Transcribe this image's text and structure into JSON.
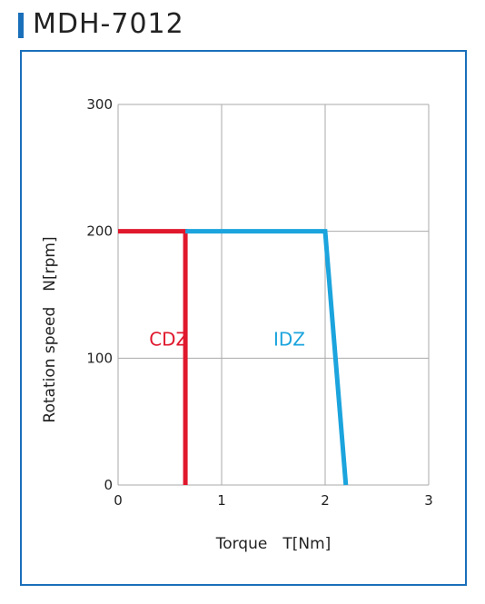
{
  "title": "MDH-7012",
  "colors": {
    "accent": "#1a6fba",
    "cdz": "#e0182d",
    "idz": "#1ba4dd",
    "grid": "#aaaaaa"
  },
  "chart_data": {
    "type": "line",
    "title": "MDH-7012",
    "xlabel": "Torque　T[Nm]",
    "ylabel": "Rotation speed　N[rpm]",
    "xlim": [
      0,
      3
    ],
    "ylim": [
      0,
      300
    ],
    "xticks": [
      "0",
      "1",
      "2",
      "3"
    ],
    "yticks": [
      "0",
      "100",
      "200",
      "300"
    ],
    "grid": true,
    "series": [
      {
        "name": "CDZ",
        "color": "#e0182d",
        "x": [
          0,
          0.65,
          0.65
        ],
        "y": [
          200,
          200,
          0
        ]
      },
      {
        "name": "IDZ",
        "color": "#1ba4dd",
        "x": [
          0.65,
          2.0,
          2.2
        ],
        "y": [
          200,
          200,
          0
        ]
      }
    ],
    "annotations": [
      {
        "text": "CDZ",
        "x": 0.3,
        "y": 110,
        "color": "#e0182d"
      },
      {
        "text": "IDZ",
        "x": 1.5,
        "y": 110,
        "color": "#1ba4dd"
      }
    ]
  }
}
